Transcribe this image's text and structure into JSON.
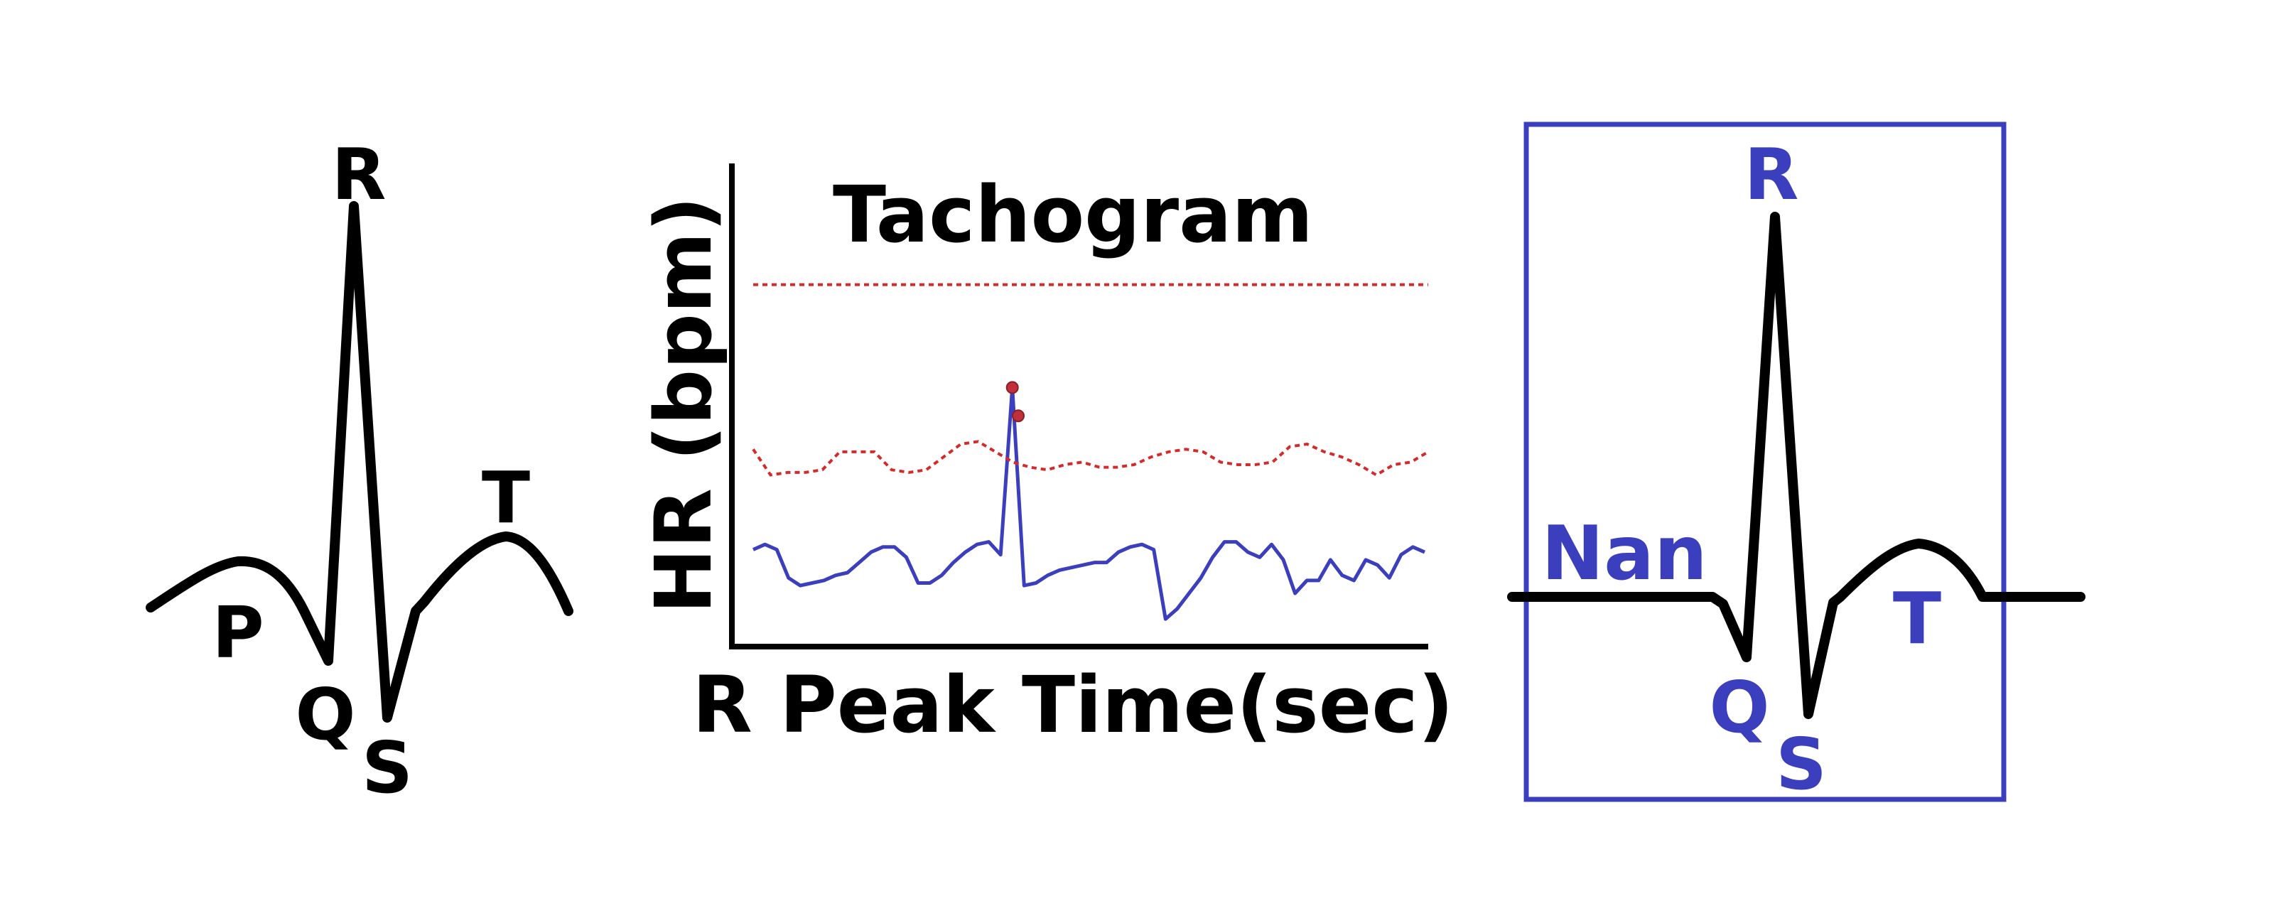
{
  "left_ecg": {
    "labels": {
      "r": "R",
      "p": "P",
      "q": "Q",
      "s": "S",
      "t": "T"
    }
  },
  "tachogram": {
    "title": "Tachogram",
    "xlabel": "R Peak Time(sec)",
    "ylabel": "HR (bpm)"
  },
  "right_ecg": {
    "labels": {
      "r": "R",
      "nan": "Nan",
      "q": "Q",
      "s": "S",
      "t": "T"
    },
    "accent_color": "#3b3fbd"
  },
  "colors": {
    "label_dark": "#000000",
    "label_accent": "#3b3fbd",
    "threshold_red": "#d42a2a",
    "series_blue": "#3b3fbd",
    "outlier_marker": "#c0303a"
  },
  "chart_data": {
    "type": "line",
    "title": "Tachogram",
    "xlabel": "R Peak Time(sec)",
    "ylabel": "HR (bpm)",
    "grid": false,
    "tick_labels": false,
    "series": [
      {
        "role": "heart-rate",
        "style": "solid",
        "color": "#3b3fbd",
        "values": [
          0.17,
          0.19,
          0.17,
          0.06,
          0.03,
          0.04,
          0.05,
          0.07,
          0.08,
          0.12,
          0.16,
          0.18,
          0.18,
          0.14,
          0.04,
          0.04,
          0.07,
          0.12,
          0.16,
          0.19,
          0.2,
          0.15,
          0.8,
          0.03,
          0.04,
          0.07,
          0.09,
          0.1,
          0.11,
          0.12,
          0.12,
          0.16,
          0.18,
          0.19,
          0.17,
          -0.1,
          -0.06,
          0.0,
          0.06,
          0.14,
          0.2,
          0.2,
          0.16,
          0.14,
          0.19,
          0.13,
          0.0,
          0.05,
          0.05,
          0.13,
          0.07,
          0.05,
          0.13,
          0.11,
          0.06,
          0.15,
          0.18,
          0.16
        ]
      },
      {
        "role": "upper-threshold",
        "style": "dotted",
        "color": "#d42a2a",
        "values": [
          1.2,
          1.2,
          1.2,
          1.2,
          1.2,
          1.2,
          1.2,
          1.2,
          1.2,
          1.2,
          1.2,
          1.2
        ]
      },
      {
        "role": "lower-threshold",
        "style": "dotted",
        "color": "#d42a2a",
        "values": [
          0.56,
          0.46,
          0.47,
          0.47,
          0.48,
          0.55,
          0.55,
          0.55,
          0.48,
          0.47,
          0.48,
          0.53,
          0.58,
          0.59,
          0.55,
          0.51,
          0.49,
          0.48,
          0.5,
          0.51,
          0.49,
          0.49,
          0.5,
          0.53,
          0.55,
          0.56,
          0.55,
          0.51,
          0.5,
          0.5,
          0.51,
          0.57,
          0.58,
          0.55,
          0.53,
          0.5,
          0.46,
          0.5,
          0.51,
          0.55
        ]
      }
    ],
    "outliers": [
      {
        "index": 22,
        "y": 0.8
      },
      {
        "index": 22.5,
        "y": 0.69
      }
    ]
  }
}
